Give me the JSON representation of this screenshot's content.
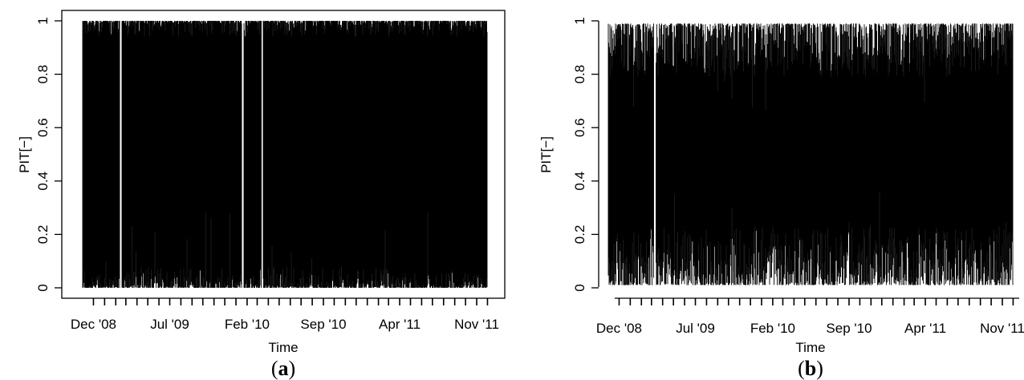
{
  "chart_data": [
    {
      "panel_label": "(a)",
      "panel_letter": "a",
      "type": "line",
      "xlabel": "Time",
      "ylabel": "PIT[−]",
      "ylim": [
        0,
        1
      ],
      "y_ticks": [
        "0",
        "0.2",
        "0.4",
        "0.6",
        "0.8",
        "1"
      ],
      "y_tick_values": [
        0,
        0.2,
        0.4,
        0.6,
        0.8,
        1
      ],
      "x_tick_labels": [
        "Dec '08",
        "Jul '09",
        "Feb '10",
        "Sep '10",
        "Apr '11",
        "Nov '11"
      ],
      "x_range": [
        "2008-11-01",
        "2011-11-30"
      ],
      "grid": false,
      "series": [
        {
          "color": "#000000",
          "description": "dense PIT time series oscillating between 0 and 1",
          "x_start": "2008-11-01",
          "x_end": "2011-11-30",
          "y_min": 0,
          "y_max": 1,
          "gaps": [
            "2009-02-15",
            "2010-01-20",
            "2010-03-15"
          ]
        }
      ]
    },
    {
      "panel_label": "(b)",
      "panel_letter": "b",
      "type": "line",
      "xlabel": "Time",
      "ylabel": "PIT[−]",
      "ylim": [
        0,
        1
      ],
      "y_ticks": [
        "0",
        "0.2",
        "0.4",
        "0.6",
        "0.8",
        "1"
      ],
      "y_tick_values": [
        0,
        0.2,
        0.4,
        0.6,
        0.8,
        1
      ],
      "x_tick_labels": [
        "Dec '08",
        "Jul '09",
        "Feb '10",
        "Sep '10",
        "Apr '11",
        "Nov '11"
      ],
      "x_range": [
        "2008-11-01",
        "2011-11-30"
      ],
      "grid": false,
      "series": [
        {
          "color": "#000000",
          "description": "dense PIT time series oscillating between roughly 0.01 and 0.99",
          "x_start": "2008-11-01",
          "x_end": "2011-11-30",
          "y_min": 0.01,
          "y_max": 0.99,
          "gaps": [
            "2009-03-10"
          ]
        }
      ]
    }
  ]
}
